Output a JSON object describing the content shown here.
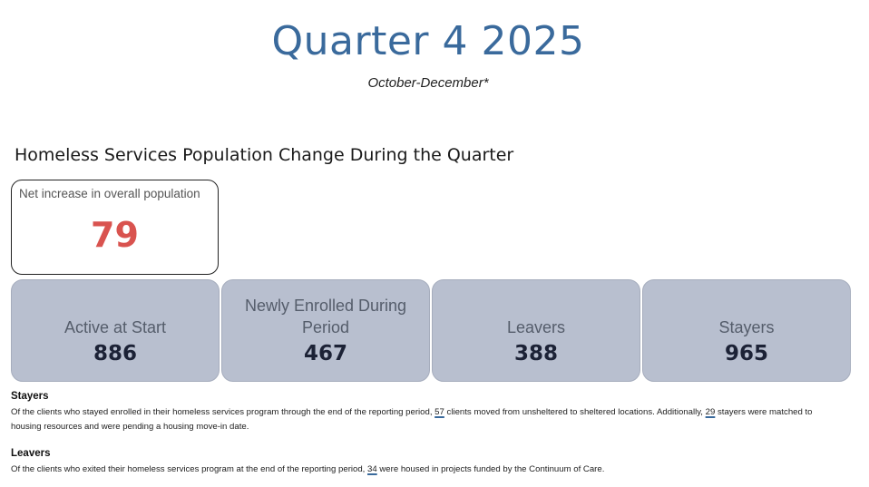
{
  "header": {
    "title": "Quarter 4 2025",
    "subtitle": "October-December*"
  },
  "section": {
    "heading": "Homeless Services Population Change During the Quarter"
  },
  "net_change": {
    "label": "Net increase in overall population",
    "value": "79"
  },
  "stats": [
    {
      "label": "Active at Start",
      "value": "886"
    },
    {
      "label": "Newly Enrolled During Period",
      "value": "467"
    },
    {
      "label": "Leavers",
      "value": "388"
    },
    {
      "label": "Stayers",
      "value": "965"
    }
  ],
  "notes": {
    "stayers": {
      "heading": "Stayers",
      "text_1": "Of the clients who stayed enrolled in their homeless services program through the end of the reporting period,",
      "num_1": "57",
      "text_2": "clients moved from unsheltered to sheltered locations. Additionally,",
      "num_2": "29",
      "text_3": "stayers were matched to housing resources and were pending a housing move-in date."
    },
    "leavers": {
      "heading": "Leavers",
      "text_1": "Of the clients who exited their homeless services program at the end of the reporting period,",
      "num_1": "34",
      "text_2": "were housed in projects funded by the Continuum of Care."
    }
  },
  "colors": {
    "title": "#3a6a9c",
    "net_value": "#d9534f",
    "card_bg": "#b8bfcf",
    "stat_value": "#1c2236"
  }
}
